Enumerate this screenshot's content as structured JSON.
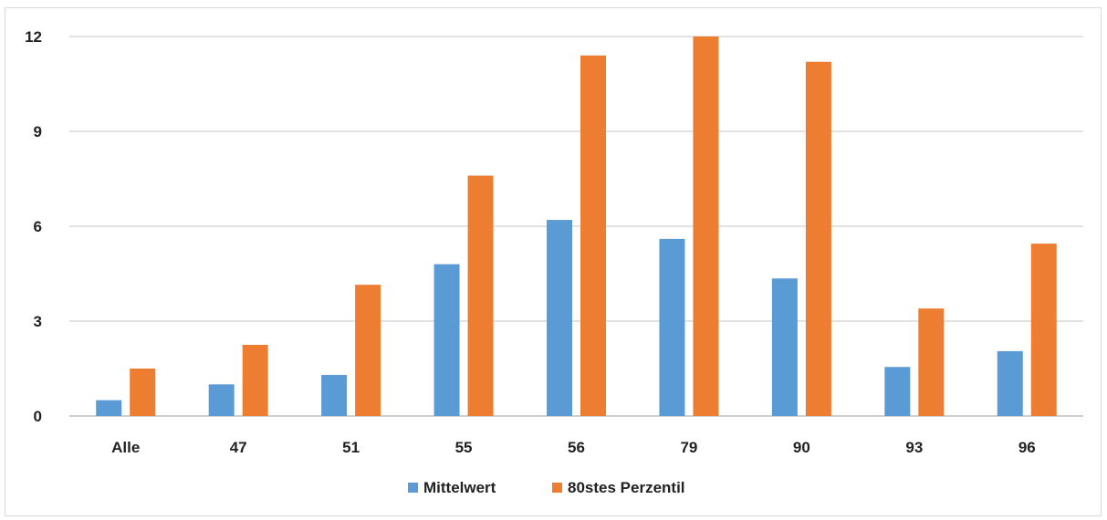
{
  "chart_data": {
    "type": "bar",
    "title": "",
    "xlabel": "",
    "ylabel": "",
    "categories": [
      "Alle",
      "47",
      "51",
      "55",
      "56",
      "79",
      "90",
      "93",
      "96"
    ],
    "series": [
      {
        "name": "Mittelwert",
        "color": "#5b9bd5",
        "values": [
          0.5,
          1.0,
          1.3,
          4.8,
          6.2,
          5.6,
          4.35,
          1.55,
          2.05
        ]
      },
      {
        "name": "80stes Perzentil",
        "color": "#ed7d31",
        "values": [
          1.5,
          2.25,
          4.15,
          7.6,
          11.4,
          12.0,
          11.2,
          3.4,
          5.45
        ]
      }
    ],
    "ylim": [
      0,
      12
    ],
    "yticks": [
      "0",
      "3",
      "6",
      "9",
      "12"
    ],
    "grid": true,
    "legend_position": "bottom"
  }
}
